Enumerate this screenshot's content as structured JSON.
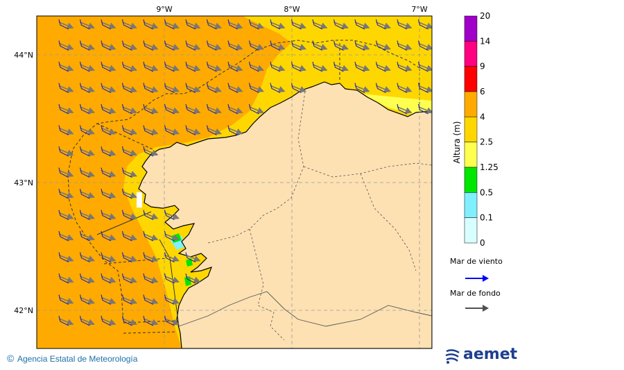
{
  "map": {
    "lon_labels": [
      "9°W",
      "8°W",
      "7°W"
    ],
    "lat_labels": [
      "44°N",
      "43°N",
      "42°N"
    ]
  },
  "colorbar": {
    "title": "Altura (m)",
    "levels": [
      "20",
      "14",
      "9",
      "6",
      "4",
      "2.5",
      "1.25",
      "0.5",
      "0.1",
      "0"
    ],
    "colors": [
      "#a000c8",
      "#ff0080",
      "#ff0000",
      "#ffaa00",
      "#ffd700",
      "#ffff50",
      "#00e600",
      "#80f0ff",
      "#d8ffff"
    ]
  },
  "legend": {
    "wind_sea_label": "Mar de viento",
    "wind_sea_color": "#0000ff",
    "swell_label": "Mar de fondo",
    "swell_color": "#505050"
  },
  "footer": {
    "copyright": "©",
    "agency": "Agencia Estatal de Meteorología",
    "logo": "aemet"
  },
  "colors": {
    "sea_4_6": "#ffaa00",
    "sea_2_5_4": "#ffd700",
    "sea_1_25_2_5": "#ffff50",
    "land": "#fde1b3",
    "swell_arrow": "#777777",
    "wind_barb": "#2b2b9c"
  }
}
